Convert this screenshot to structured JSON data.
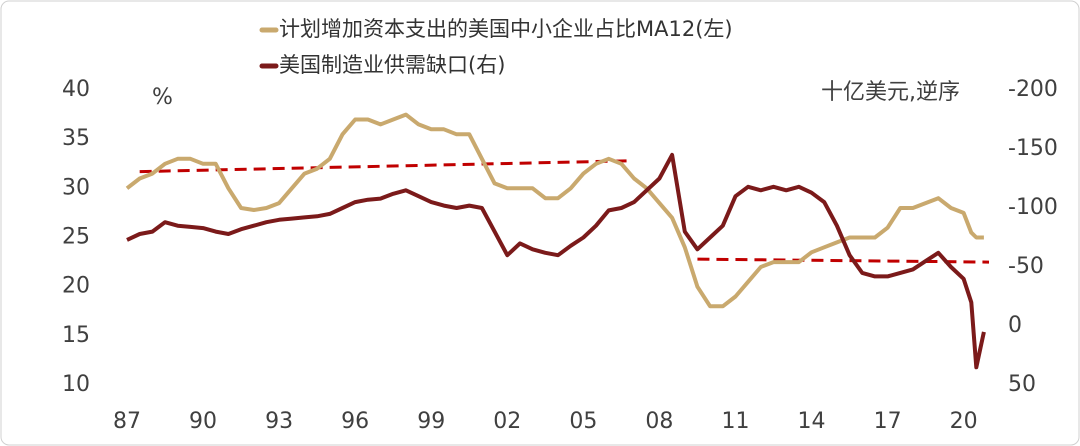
{
  "chart_data": {
    "type": "line",
    "ylabel": "%",
    "y2label": "十亿美元,逆序",
    "x": [
      1987,
      1987.5,
      1988,
      1988.5,
      1989,
      1989.5,
      1990,
      1990.5,
      1991,
      1991.5,
      1992,
      1992.5,
      1993,
      1993.5,
      1994,
      1994.5,
      1995,
      1995.5,
      1996,
      1996.5,
      1997,
      1997.5,
      1998,
      1998.5,
      1999,
      1999.5,
      2000,
      2000.5,
      2001,
      2001.5,
      2002,
      2002.5,
      2003,
      2003.5,
      2004,
      2004.5,
      2005,
      2005.5,
      2006,
      2006.5,
      2007,
      2007.5,
      2008,
      2008.5,
      2009,
      2009.5,
      2010,
      2010.5,
      2011,
      2011.5,
      2012,
      2012.5,
      2013,
      2013.5,
      2014,
      2014.5,
      2015,
      2015.5,
      2016,
      2016.5,
      2017,
      2017.5,
      2018,
      2018.5,
      2019,
      2019.5,
      2020,
      2020.3,
      2020.5,
      2020.8
    ],
    "series": [
      {
        "name": "计划增加资本支出的美国中小企业占比MA12(左)",
        "color": "#c9a96e",
        "axis": "y",
        "values": [
          30,
          31,
          31.5,
          32.5,
          33,
          33,
          32.5,
          32.5,
          30,
          28,
          27.8,
          28,
          28.5,
          30,
          31.5,
          32,
          33,
          35.5,
          37,
          37,
          36.5,
          37,
          37.5,
          36.5,
          36,
          36,
          35.5,
          35.5,
          33,
          30.5,
          30,
          30,
          30,
          29,
          29,
          30,
          31.5,
          32.5,
          33,
          32.5,
          31,
          30,
          28.5,
          27,
          24,
          20,
          18,
          18,
          19,
          20.5,
          22,
          22.5,
          22.5,
          22.5,
          23.5,
          24,
          24.5,
          25,
          25,
          25,
          26,
          28,
          28,
          28.5,
          29,
          28,
          27.5,
          25.5,
          25,
          25
        ]
      },
      {
        "name": "美国制造业供需缺口(右)",
        "color": "#7b1a1a",
        "axis": "y2",
        "values": [
          -73,
          -78,
          -80,
          -88,
          -85,
          -84,
          -83,
          -80,
          -78,
          -82,
          -85,
          -88,
          -90,
          -91,
          -92,
          -93,
          -95,
          -100,
          -105,
          -107,
          -108,
          -112,
          -115,
          -110,
          -105,
          -102,
          -100,
          -102,
          -100,
          -80,
          -60,
          -70,
          -65,
          -62,
          -60,
          -68,
          -75,
          -85,
          -98,
          -100,
          -105,
          -115,
          -125,
          -145,
          -80,
          -65,
          -75,
          -85,
          -110,
          -118,
          -115,
          -118,
          -115,
          -118,
          -113,
          -105,
          -85,
          -60,
          -45,
          -42,
          -42,
          -45,
          -48,
          -55,
          -62,
          -50,
          -40,
          -20,
          35,
          5
        ]
      }
    ],
    "trend_lines": [
      {
        "axis": "y",
        "color": "#c00000",
        "x": [
          1987.5,
          2006.8
        ],
        "values": [
          31.7,
          32.8
        ]
      },
      {
        "axis": "y",
        "color": "#c00000",
        "x": [
          2009.5,
          2021
        ],
        "values": [
          22.8,
          22.5
        ]
      }
    ],
    "xlim": [
      1987,
      2021
    ],
    "xticks": [
      {
        "value": 1987,
        "label": "87"
      },
      {
        "value": 1990,
        "label": "90"
      },
      {
        "value": 1993,
        "label": "93"
      },
      {
        "value": 1996,
        "label": "96"
      },
      {
        "value": 1999,
        "label": "99"
      },
      {
        "value": 2002,
        "label": "02"
      },
      {
        "value": 2005,
        "label": "05"
      },
      {
        "value": 2008,
        "label": "08"
      },
      {
        "value": 2011,
        "label": "11"
      },
      {
        "value": 2014,
        "label": "14"
      },
      {
        "value": 2017,
        "label": "17"
      },
      {
        "value": 2020,
        "label": "20"
      }
    ],
    "ylim": [
      10,
      40
    ],
    "yticks": [
      10,
      15,
      20,
      25,
      30,
      35,
      40
    ],
    "y2lim": [
      50,
      -200
    ],
    "y2ticks": [
      -200,
      -150,
      -100,
      -50,
      0,
      50
    ]
  }
}
